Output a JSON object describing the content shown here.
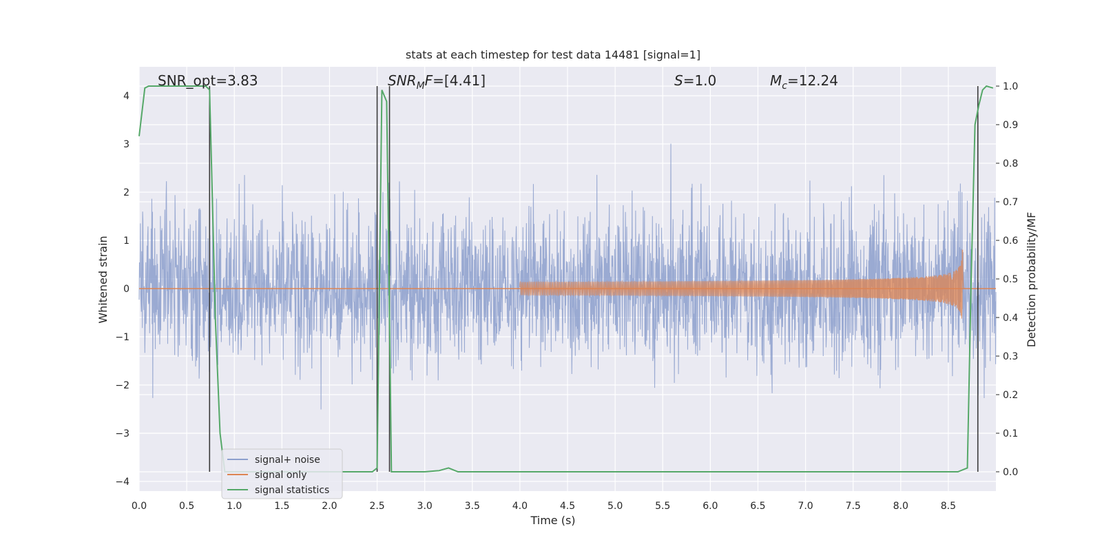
{
  "chart_data": {
    "type": "line",
    "title": "stats at each timestep for test data 14481 [signal=1]",
    "xlabel": "Time (s)",
    "ylabel": "Whitened strain",
    "y2label": "Detection probability/MF",
    "xlim": [
      0.0,
      9.0
    ],
    "ylim": [
      -4.2,
      4.6
    ],
    "y2lim": [
      -0.05,
      1.05
    ],
    "xticks": [
      "0.0",
      "0.5",
      "1.0",
      "1.5",
      "2.0",
      "2.5",
      "3.0",
      "3.5",
      "4.0",
      "4.5",
      "5.0",
      "5.5",
      "6.0",
      "6.5",
      "7.0",
      "7.5",
      "8.0",
      "8.5"
    ],
    "yticks": [
      "−4",
      "−3",
      "−2",
      "−1",
      "0",
      "1",
      "2",
      "3",
      "4"
    ],
    "y2ticks": [
      "0.0",
      "0.1",
      "0.2",
      "0.3",
      "0.4",
      "0.5",
      "0.6",
      "0.7",
      "0.8",
      "0.9",
      "1.0"
    ],
    "grid": true,
    "legend_position": "lower-left",
    "annotations": {
      "snr_opt": "SNR_opt=3.83",
      "snr_mf_prefix": "SNR",
      "snr_mf_sub": "M",
      "snr_mf_suffix": "F=[4.41]",
      "s_prefix": "S",
      "s_suffix": "=1.0",
      "mc_prefix": "M",
      "mc_sub": "c",
      "mc_suffix": "=12.24"
    },
    "series": [
      {
        "name": "signal+ noise",
        "color": "#8c9fcd",
        "noise_sigma": 0.78,
        "x_range": [
          0.0,
          9.0
        ],
        "samples": 2700
      },
      {
        "name": "signal only",
        "color": "#dd8452",
        "chirp": {
          "start_time": 4.0,
          "merger_time": 8.65,
          "peak_amplitude": 0.8,
          "end_time": 8.67
        }
      },
      {
        "name": "signal statistics",
        "color": "#55a868",
        "axis": "right",
        "x": [
          0.0,
          0.06,
          0.1,
          0.25,
          0.5,
          0.7,
          0.74,
          0.76,
          0.8,
          0.85,
          0.9,
          1.0,
          1.5,
          2.0,
          2.3,
          2.45,
          2.5,
          2.55,
          2.6,
          2.62,
          2.65,
          2.7,
          3.0,
          3.15,
          3.25,
          3.35,
          4.0,
          5.0,
          6.0,
          7.0,
          8.0,
          8.6,
          8.7,
          8.74,
          8.78,
          8.82,
          8.86,
          8.9,
          8.97
        ],
        "y": [
          0.87,
          0.995,
          1.0,
          1.0,
          1.0,
          1.0,
          0.99,
          0.8,
          0.4,
          0.1,
          0.0,
          0.0,
          0.0,
          0.0,
          0.0,
          0.0,
          0.01,
          0.99,
          0.96,
          0.6,
          0.0,
          0.0,
          0.0,
          0.003,
          0.01,
          0.0,
          0.0,
          0.0,
          0.0,
          0.0,
          0.0,
          0.0,
          0.01,
          0.5,
          0.9,
          0.95,
          0.99,
          1.0,
          0.995
        ]
      }
    ],
    "vertical_markers": {
      "color": "#3a3a3a",
      "x": [
        0.74,
        2.5,
        2.63,
        8.81
      ]
    }
  }
}
